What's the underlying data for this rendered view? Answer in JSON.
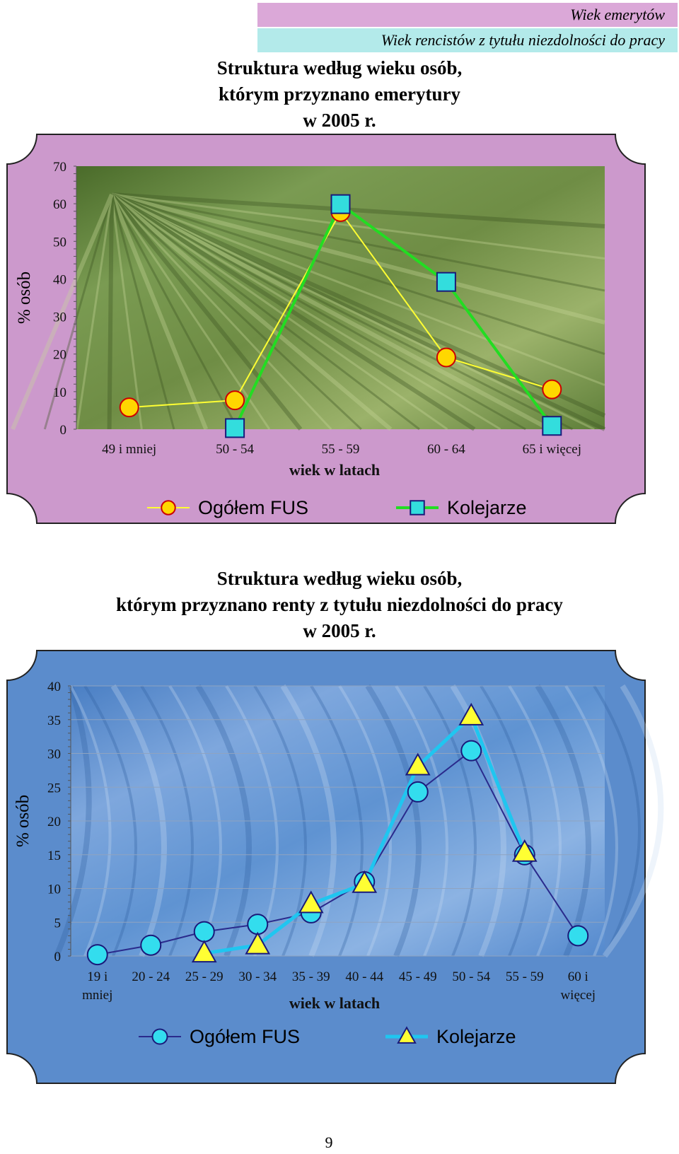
{
  "legend_bars": {
    "retirees": "Wiek emerytów",
    "disability": "Wiek rencistów z tytułu niezdolności do pracy"
  },
  "colors": {
    "retirees_band": "#dba8d8",
    "disability_band": "#b3eaea",
    "chart1_frame": "#cc99cc",
    "chart2_frame": "#5b8ccc",
    "fus_line_1": "#ffff33",
    "fus_marker_1": "#ffd700",
    "kol_line_1": "#22dd22",
    "kol_marker_1": "#33dddd",
    "fus_line_2": "#2a2a8c",
    "fus_marker_2": "#33ddee",
    "kol_line_2": "#1fc6f0",
    "kol_marker_2": "#ffff33"
  },
  "chart_data": [
    {
      "type": "line",
      "title": "Struktura według wieku osób, którym przyznano emerytury w 2005 r.",
      "title_lines": [
        "Struktura  według wieku osób,",
        "którym przyznano emerytury",
        "w 2005 r."
      ],
      "xlabel": "wiek w latach",
      "ylabel": "% osób",
      "ylim": [
        0,
        70
      ],
      "yticks": [
        0,
        10,
        20,
        30,
        40,
        50,
        60,
        70
      ],
      "categories": [
        "49 i mniej",
        "50 - 54",
        "55 - 59",
        "60 - 64",
        "65  i więcej"
      ],
      "series": [
        {
          "name": "Ogółem FUS",
          "values": [
            5.8,
            7.7,
            57.8,
            19.1,
            10.6
          ],
          "marker": "circle"
        },
        {
          "name": "Kolejarze",
          "values": [
            null,
            0.3,
            59.9,
            39.2,
            0.9
          ],
          "marker": "square"
        }
      ],
      "legend_position": "bottom"
    },
    {
      "type": "line",
      "title": "Struktura według wieku osób, którym przyznano renty z tytułu niezdolności do pracy w 2005 r.",
      "title_lines": [
        "Struktura  według wieku osób,",
        "którym przyznano renty z tytułu niezdolności do pracy",
        "w 2005 r."
      ],
      "xlabel": "wiek w latach",
      "ylabel": "% osób",
      "ylim": [
        0,
        40
      ],
      "yticks": [
        0,
        5,
        10,
        15,
        20,
        25,
        30,
        35,
        40
      ],
      "categories": [
        [
          "19 i",
          "mniej"
        ],
        [
          "20 - 24"
        ],
        [
          "25 - 29"
        ],
        [
          "30 - 34"
        ],
        [
          "35 - 39"
        ],
        [
          "40 - 44"
        ],
        [
          "45 - 49"
        ],
        [
          "50 - 54"
        ],
        [
          "55 - 59"
        ],
        [
          "60 i",
          "więcej"
        ]
      ],
      "series": [
        {
          "name": "Ogółem FUS",
          "values": [
            0.2,
            1.6,
            3.6,
            4.7,
            6.4,
            11.0,
            24.3,
            30.4,
            15.0,
            3.0
          ],
          "marker": "circle"
        },
        {
          "name": "Kolejarze",
          "values": [
            null,
            null,
            0.4,
            1.6,
            7.7,
            10.7,
            28.1,
            35.5,
            15.3,
            null
          ],
          "marker": "triangle"
        }
      ],
      "legend_position": "bottom"
    }
  ],
  "page_number": "9"
}
